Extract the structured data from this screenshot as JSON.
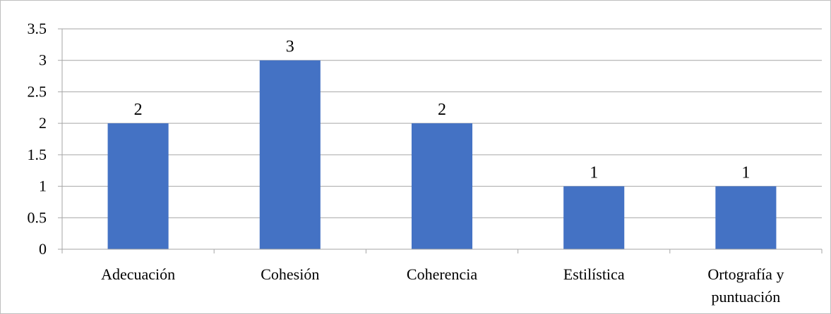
{
  "chart_data": {
    "type": "bar",
    "categories": [
      "Adecuación",
      "Cohesión",
      "Coherencia",
      "Estilística",
      "Ortografía y puntuación"
    ],
    "category_lines": [
      [
        "Adecuación"
      ],
      [
        "Cohesión"
      ],
      [
        "Coherencia"
      ],
      [
        "Estilística"
      ],
      [
        "Ortografía y",
        "puntuación"
      ]
    ],
    "values": [
      2,
      3,
      2,
      1,
      1
    ],
    "data_labels": [
      "2",
      "3",
      "2",
      "1",
      "1"
    ],
    "y_ticks": [
      "0",
      "0.5",
      "1",
      "1.5",
      "2",
      "2.5",
      "3",
      "3.5"
    ],
    "ylim": [
      0,
      3.5
    ],
    "title": "",
    "xlabel": "",
    "ylabel": "",
    "grid": true,
    "legend": "none",
    "bar_color": "#4472C4",
    "grid_color": "#a6a6a6"
  }
}
